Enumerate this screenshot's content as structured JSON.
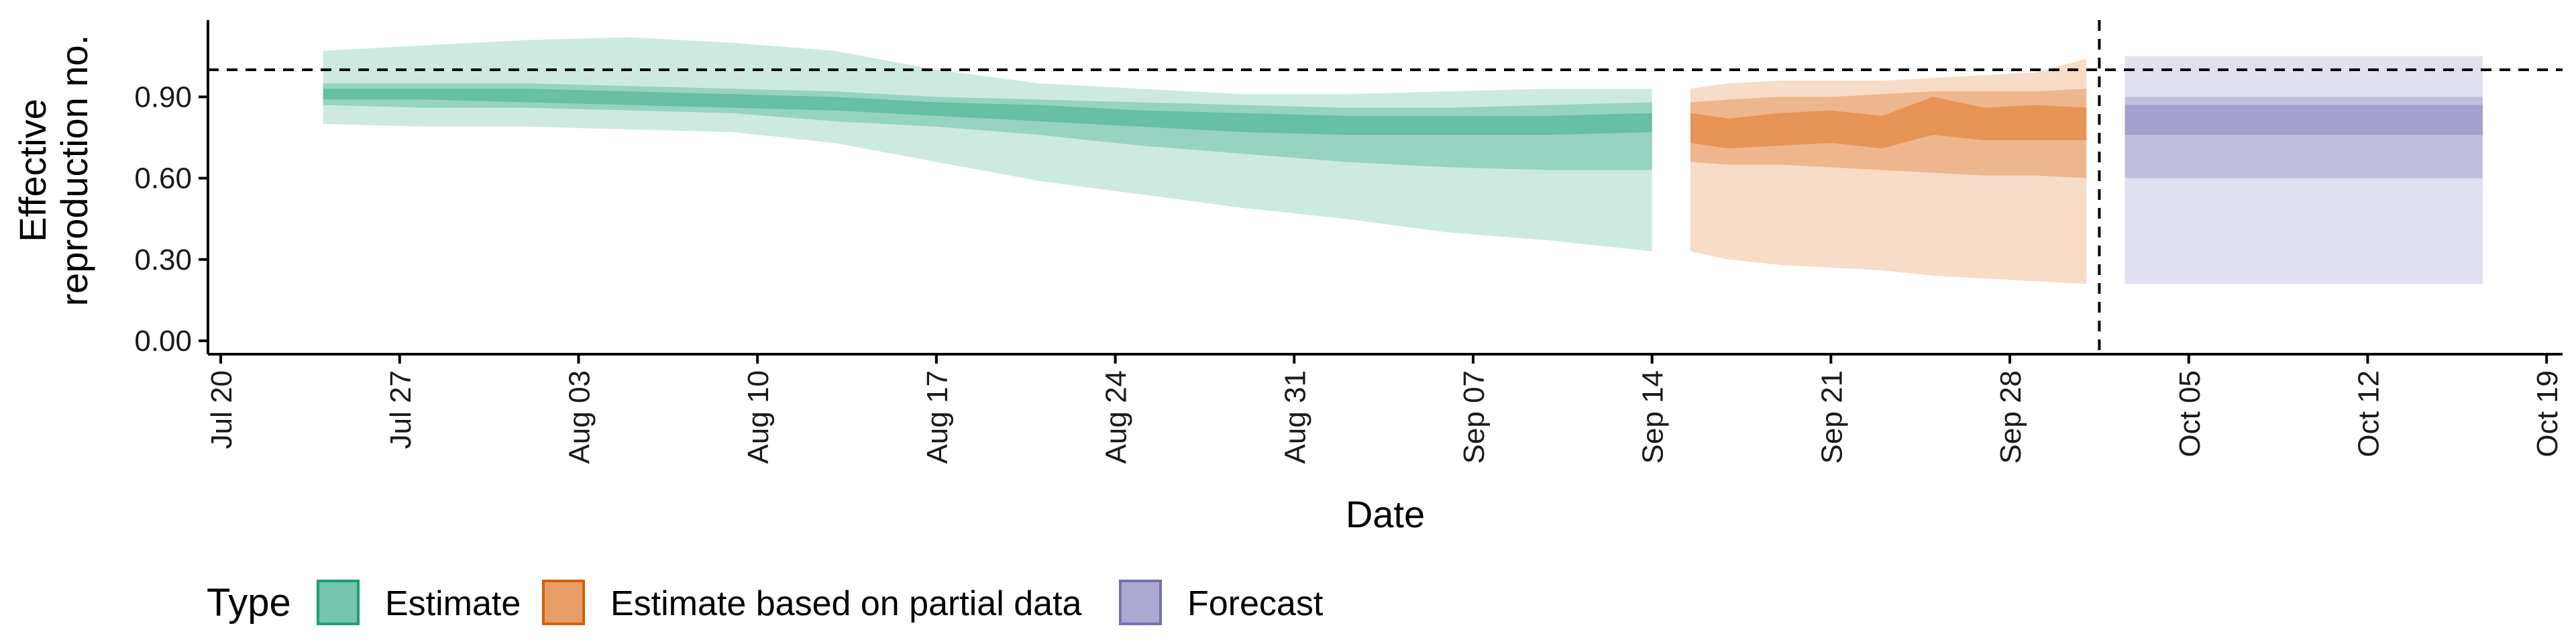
{
  "chart_data": {
    "type": "area",
    "title": "",
    "xlabel": "Date",
    "ylabel_lines": [
      "Effective",
      "reproduction no."
    ],
    "ylim": [
      -0.05,
      1.18
    ],
    "y_ticks": [
      0.0,
      0.3,
      0.6,
      0.9
    ],
    "y_tick_labels": [
      "0.00",
      "0.30",
      "0.60",
      "0.90"
    ],
    "x_tick_labels": [
      "Jul 20",
      "Jul 27",
      "Aug 03",
      "Aug 10",
      "Aug 17",
      "Aug 24",
      "Aug 31",
      "Sep 07",
      "Sep 14",
      "Sep 21",
      "Sep 28",
      "Oct 05",
      "Oct 12",
      "Oct 19"
    ],
    "x_range_days": [
      -0.5,
      91.5
    ],
    "reference_line_y": 1.0,
    "reference_line_style": "dashed",
    "forecast_start_day": 73.5,
    "grid": false,
    "legend": {
      "title": "Type",
      "position": "bottom-left",
      "entries": [
        "Estimate",
        "Estimate based on partial data",
        "Forecast"
      ]
    },
    "colors": {
      "Estimate": "#1b9e77",
      "Estimate based on partial data": "#d95f02",
      "Forecast": "#7570b3"
    },
    "series": [
      {
        "name": "Estimate",
        "interval_levels": [
          "90%",
          "50%",
          "20%"
        ],
        "x": [
          4,
          8,
          12,
          16,
          20,
          24,
          28,
          32,
          36,
          40,
          44,
          48,
          52,
          56
        ],
        "median": [
          0.91,
          0.91,
          0.91,
          0.9,
          0.89,
          0.87,
          0.86,
          0.84,
          0.81,
          0.8,
          0.79,
          0.79,
          0.79,
          0.8
        ],
        "ci90_lower": [
          0.8,
          0.79,
          0.79,
          0.78,
          0.77,
          0.73,
          0.66,
          0.59,
          0.54,
          0.49,
          0.45,
          0.4,
          0.37,
          0.33
        ],
        "ci90_upper": [
          1.07,
          1.09,
          1.11,
          1.12,
          1.1,
          1.07,
          1.0,
          0.95,
          0.93,
          0.91,
          0.91,
          0.92,
          0.93,
          0.93
        ],
        "ci50_lower": [
          0.87,
          0.86,
          0.86,
          0.85,
          0.84,
          0.81,
          0.79,
          0.76,
          0.72,
          0.69,
          0.66,
          0.64,
          0.63,
          0.63
        ],
        "ci50_upper": [
          0.95,
          0.95,
          0.95,
          0.94,
          0.93,
          0.92,
          0.9,
          0.89,
          0.88,
          0.87,
          0.86,
          0.86,
          0.87,
          0.88
        ],
        "ci20_lower": [
          0.89,
          0.89,
          0.88,
          0.87,
          0.86,
          0.85,
          0.83,
          0.81,
          0.79,
          0.77,
          0.76,
          0.76,
          0.76,
          0.77
        ],
        "ci20_upper": [
          0.93,
          0.93,
          0.93,
          0.92,
          0.91,
          0.9,
          0.88,
          0.87,
          0.85,
          0.84,
          0.83,
          0.83,
          0.83,
          0.84
        ]
      },
      {
        "name": "Estimate based on partial data",
        "interval_levels": [
          "90%",
          "50%",
          "20%"
        ],
        "x": [
          57.5,
          59,
          61,
          63,
          65,
          67,
          69,
          71,
          73
        ],
        "median": [
          0.79,
          0.76,
          0.78,
          0.79,
          0.77,
          0.85,
          0.8,
          0.81,
          0.8
        ],
        "ci90_lower": [
          0.33,
          0.3,
          0.28,
          0.27,
          0.26,
          0.24,
          0.23,
          0.22,
          0.21
        ],
        "ci90_upper": [
          0.93,
          0.95,
          0.96,
          0.96,
          0.96,
          0.97,
          0.98,
          0.99,
          1.04
        ],
        "ci50_lower": [
          0.66,
          0.65,
          0.65,
          0.64,
          0.63,
          0.62,
          0.61,
          0.61,
          0.6
        ],
        "ci50_upper": [
          0.88,
          0.89,
          0.9,
          0.9,
          0.91,
          0.92,
          0.92,
          0.92,
          0.93
        ],
        "ci20_lower": [
          0.73,
          0.71,
          0.72,
          0.73,
          0.71,
          0.76,
          0.74,
          0.74,
          0.74
        ],
        "ci20_upper": [
          0.84,
          0.82,
          0.84,
          0.85,
          0.83,
          0.9,
          0.86,
          0.87,
          0.86
        ]
      },
      {
        "name": "Forecast",
        "interval_levels": [
          "90%",
          "50%",
          "20%"
        ],
        "x": [
          74.5,
          88.5
        ],
        "median": [
          0.82,
          0.82
        ],
        "ci90_lower": [
          0.21,
          0.21
        ],
        "ci90_upper": [
          1.05,
          1.05
        ],
        "ci50_lower": [
          0.6,
          0.6
        ],
        "ci50_upper": [
          0.9,
          0.9
        ],
        "ci20_lower": [
          0.76,
          0.76
        ],
        "ci20_upper": [
          0.87,
          0.87
        ]
      }
    ]
  }
}
